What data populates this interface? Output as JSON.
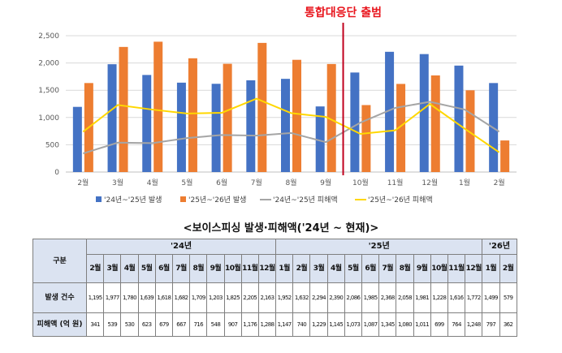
{
  "chart_data": {
    "type": "bar",
    "categories": [
      "2월",
      "3월",
      "4월",
      "5월",
      "6월",
      "7월",
      "8월",
      "9월",
      "10월",
      "11월",
      "12월",
      "1월",
      "2월"
    ],
    "ylim": [
      0,
      2500
    ],
    "yticks": [
      "0",
      "500",
      "1,000",
      "1,500",
      "2,000",
      "2,500"
    ],
    "series": [
      {
        "name": "'24년~'25년 발생",
        "kind": "bar",
        "color": "#4472c4",
        "values": [
          1195,
          1977,
          1780,
          1639,
          1618,
          1682,
          1709,
          1203,
          1825,
          2205,
          2163,
          1952,
          1632
        ]
      },
      {
        "name": "'25년~'26년 발생",
        "kind": "bar",
        "color": "#ed7d31",
        "values": [
          1632,
          2294,
          2390,
          2086,
          1985,
          2368,
          2058,
          1981,
          1228,
          1616,
          1772,
          1499,
          579
        ]
      },
      {
        "name": "'24년~'25년 피해액",
        "kind": "line",
        "color": "#a5a5a5",
        "values": [
          341,
          539,
          530,
          623,
          679,
          667,
          716,
          548,
          907,
          1176,
          1288,
          1147,
          740
        ]
      },
      {
        "name": "'25년~'26년 피해액",
        "kind": "line",
        "color": "#ffd700",
        "values": [
          740,
          1229,
          1145,
          1073,
          1087,
          1345,
          1080,
          1011,
          699,
          764,
          1248,
          797,
          362
        ]
      }
    ],
    "annotation": {
      "label": "통합대응단 출범",
      "after_category_index": 7
    },
    "legend": "bottom",
    "grid": true
  },
  "table": {
    "title": "<보이스피싱 발생·피해액('24년 ~ 현재)>",
    "corner": "구분",
    "years": [
      {
        "label": "'24년",
        "span": 11
      },
      {
        "label": "'25년",
        "span": 12
      },
      {
        "label": "'26년",
        "span": 2
      }
    ],
    "months": [
      "2월",
      "3월",
      "4월",
      "5월",
      "6월",
      "7월",
      "8월",
      "9월",
      "10월",
      "11월",
      "12월",
      "1월",
      "2월",
      "3월",
      "4월",
      "5월",
      "6월",
      "7월",
      "8월",
      "9월",
      "10월",
      "11월",
      "12월",
      "1월",
      "2월"
    ],
    "rows": [
      {
        "label": "발생 건수",
        "values": [
          "1,195",
          "1,977",
          "1,780",
          "1,639",
          "1,618",
          "1,682",
          "1,709",
          "1,203",
          "1,825",
          "2,205",
          "2,163",
          "1,952",
          "1,632",
          "2,294",
          "2,390",
          "2,086",
          "1,985",
          "2,368",
          "2,058",
          "1,981",
          "1,228",
          "1,616",
          "1,772",
          "1,499",
          "579"
        ]
      },
      {
        "label": "피해액 (억 원)",
        "values": [
          "341",
          "539",
          "530",
          "623",
          "679",
          "667",
          "716",
          "548",
          "907",
          "1,176",
          "1,288",
          "1,147",
          "740",
          "1,229",
          "1,145",
          "1,073",
          "1,087",
          "1,345",
          "1,080",
          "1,011",
          "699",
          "764",
          "1,248",
          "797",
          "362"
        ]
      }
    ]
  }
}
